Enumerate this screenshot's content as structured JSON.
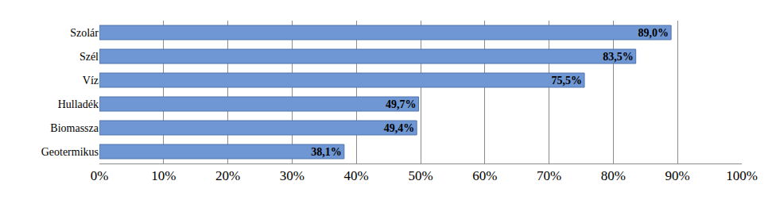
{
  "chart_data": {
    "type": "bar",
    "orientation": "horizontal",
    "categories": [
      "Szolár",
      "Szél",
      "Víz",
      "Hulladék",
      "Biomassza",
      "Geotermikus"
    ],
    "values": [
      89.0,
      83.5,
      75.5,
      49.7,
      49.4,
      38.1
    ],
    "value_labels": [
      "89,0%",
      "83,5%",
      "75,5%",
      "49,7%",
      "49,4%",
      "38,1%"
    ],
    "color": "#6f97d4",
    "xlim": [
      0,
      100
    ],
    "xticks": [
      {
        "value": 0,
        "label": "0%"
      },
      {
        "value": 10,
        "label": "10%"
      },
      {
        "value": 20,
        "label": "20%"
      },
      {
        "value": 30,
        "label": "30%"
      },
      {
        "value": 40,
        "label": "40%"
      },
      {
        "value": 50,
        "label": "50%"
      },
      {
        "value": 60,
        "label": "60%"
      },
      {
        "value": 70,
        "label": "70%"
      },
      {
        "value": 80,
        "label": "80%"
      },
      {
        "value": 90,
        "label": "90%"
      },
      {
        "value": 100,
        "label": "100%"
      }
    ],
    "grid": true,
    "data_labels": true
  }
}
